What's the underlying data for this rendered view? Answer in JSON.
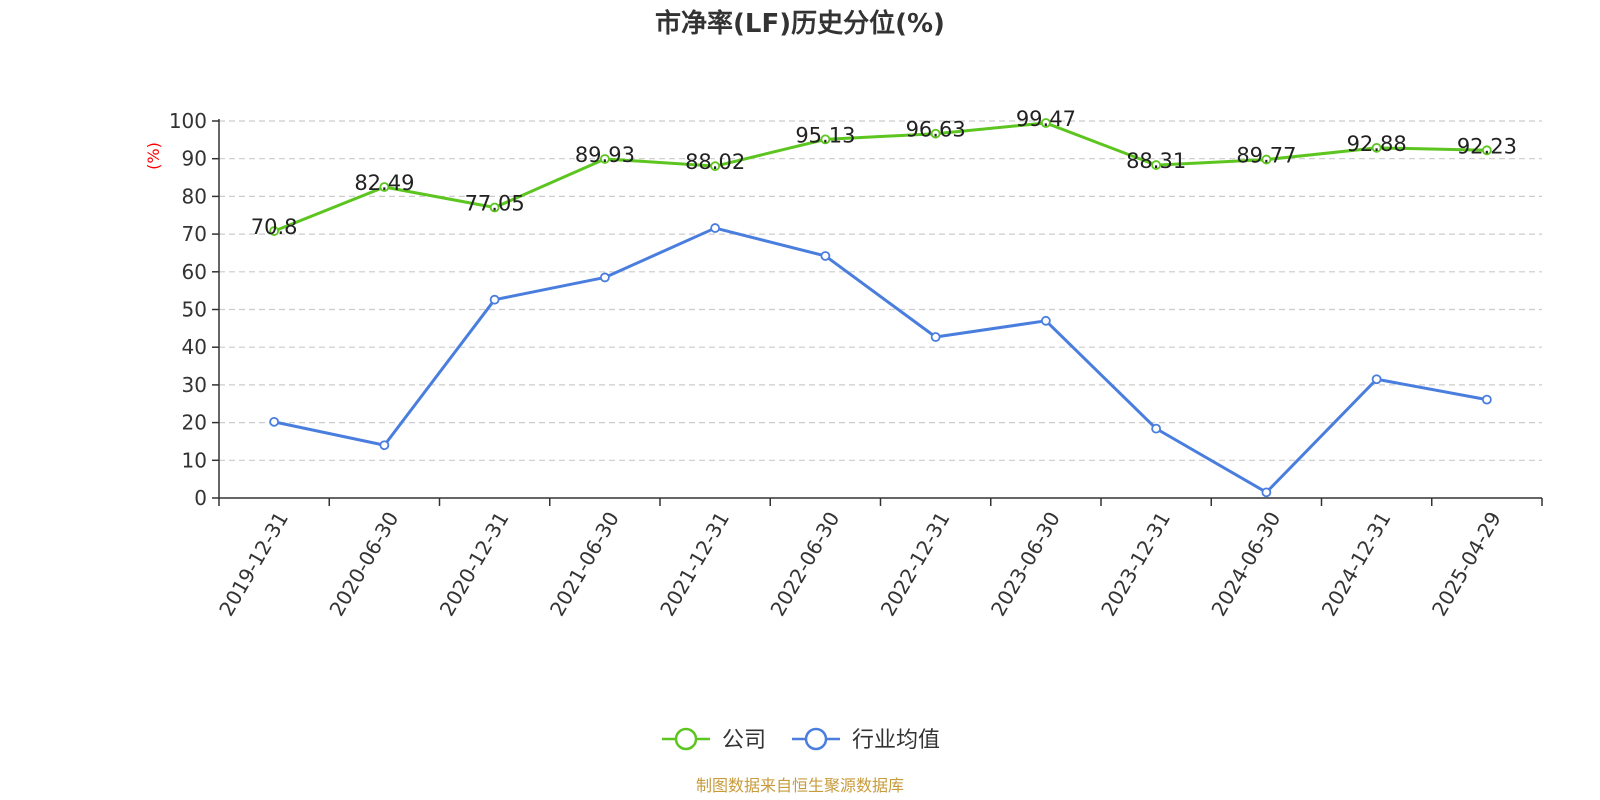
{
  "chart_data": {
    "type": "line",
    "title": "市净率(LF)历史分位(%)",
    "ylabel": "(%)",
    "xlabel": "",
    "ylim": [
      0,
      100
    ],
    "yticks": [
      0,
      10,
      20,
      30,
      40,
      50,
      60,
      70,
      80,
      90,
      100
    ],
    "grid": true,
    "legend_position": "bottom-center",
    "categories": [
      "2019-12-31",
      "2020-06-30",
      "2020-12-31",
      "2021-06-30",
      "2021-12-31",
      "2022-06-30",
      "2022-12-31",
      "2023-06-30",
      "2023-12-31",
      "2024-06-30",
      "2024-12-31",
      "2025-04-29"
    ],
    "series": [
      {
        "name": "公司",
        "color": "#5dc520",
        "values": [
          70.8,
          82.49,
          77.05,
          89.93,
          88.02,
          95.13,
          96.63,
          99.47,
          88.31,
          89.77,
          92.88,
          92.23
        ],
        "labels": [
          "70.8",
          "82.49",
          "77.05",
          "89.93",
          "88.02",
          "95.13",
          "96.63",
          "99.47",
          "88.31",
          "89.77",
          "92.88",
          "92.23"
        ],
        "show_labels": true
      },
      {
        "name": "行业均值",
        "color": "#4a7ede",
        "values": [
          20.2,
          14.0,
          52.6,
          58.5,
          71.6,
          64.2,
          42.7,
          47.0,
          18.4,
          1.5,
          31.5,
          26.1
        ],
        "show_labels": false
      }
    ],
    "source": "制图数据来自恒生聚源数据库"
  }
}
